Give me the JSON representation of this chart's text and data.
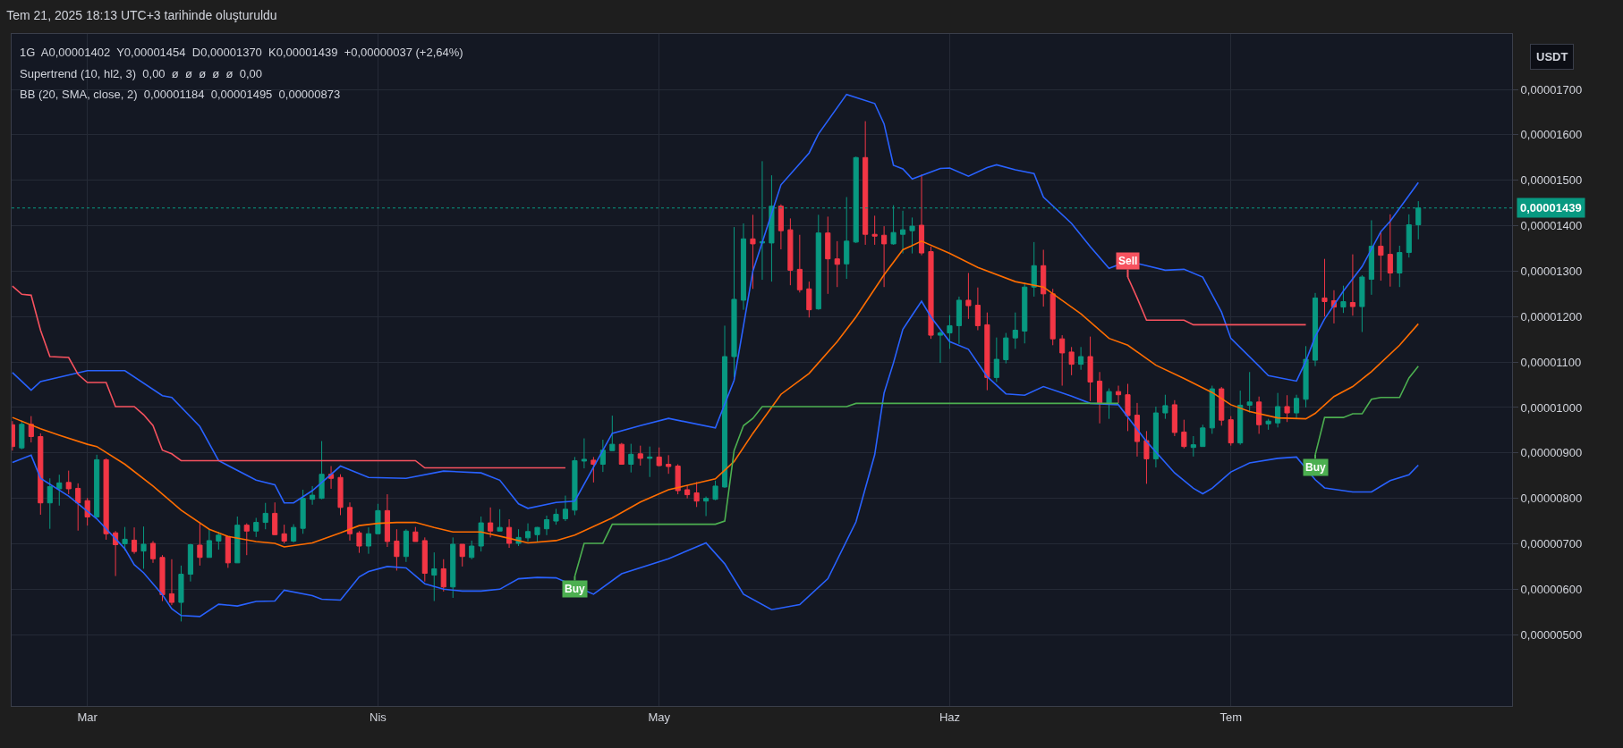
{
  "chart_data": {
    "type": "candlestick",
    "title": "Tem 21, 2025 18:13 UTC+3 tarihinde oluşturuldu",
    "x": [
      "2025-02-21",
      "2025-02-22",
      "2025-02-23",
      "2025-02-24",
      "2025-02-25",
      "2025-02-26",
      "2025-02-27",
      "2025-02-28",
      "2025-03-01",
      "2025-03-02",
      "2025-03-03",
      "2025-03-04",
      "2025-03-05",
      "2025-03-06",
      "2025-03-07",
      "2025-03-08",
      "2025-03-09",
      "2025-03-10",
      "2025-03-11",
      "2025-03-12",
      "2025-03-13",
      "2025-03-14",
      "2025-03-15",
      "2025-03-16",
      "2025-03-17",
      "2025-03-18",
      "2025-03-19",
      "2025-03-20",
      "2025-03-21",
      "2025-03-22",
      "2025-03-23",
      "2025-03-24",
      "2025-03-25",
      "2025-03-26",
      "2025-03-27",
      "2025-03-28",
      "2025-03-29",
      "2025-03-30",
      "2025-03-31",
      "2025-04-01",
      "2025-04-02",
      "2025-04-03",
      "2025-04-04",
      "2025-04-05",
      "2025-04-06",
      "2025-04-07",
      "2025-04-08",
      "2025-04-09",
      "2025-04-10",
      "2025-04-11",
      "2025-04-12",
      "2025-04-13",
      "2025-04-14",
      "2025-04-15",
      "2025-04-16",
      "2025-04-17",
      "2025-04-18",
      "2025-04-19",
      "2025-04-20",
      "2025-04-21",
      "2025-04-22",
      "2025-04-23",
      "2025-04-24",
      "2025-04-25",
      "2025-04-26",
      "2025-04-27",
      "2025-04-28",
      "2025-04-29",
      "2025-04-30",
      "2025-05-01",
      "2025-05-02",
      "2025-05-03",
      "2025-05-04",
      "2025-05-05",
      "2025-05-06",
      "2025-05-07",
      "2025-05-08",
      "2025-05-09",
      "2025-05-10",
      "2025-05-11",
      "2025-05-12",
      "2025-05-13",
      "2025-05-14",
      "2025-05-15",
      "2025-05-16",
      "2025-05-17",
      "2025-05-18",
      "2025-05-19",
      "2025-05-20",
      "2025-05-21",
      "2025-05-22",
      "2025-05-23",
      "2025-05-24",
      "2025-05-25",
      "2025-05-26",
      "2025-05-27",
      "2025-05-28",
      "2025-05-29",
      "2025-05-30",
      "2025-05-31",
      "2025-06-01",
      "2025-06-02",
      "2025-06-03",
      "2025-06-04",
      "2025-06-05",
      "2025-06-06",
      "2025-06-07",
      "2025-06-08",
      "2025-06-09",
      "2025-06-10",
      "2025-06-11",
      "2025-06-12",
      "2025-06-13",
      "2025-06-14",
      "2025-06-15",
      "2025-06-16",
      "2025-06-17",
      "2025-06-18",
      "2025-06-19",
      "2025-06-20",
      "2025-06-21",
      "2025-06-22",
      "2025-06-23",
      "2025-06-24",
      "2025-06-25",
      "2025-06-26",
      "2025-06-27",
      "2025-06-28",
      "2025-06-29",
      "2025-06-30",
      "2025-07-01",
      "2025-07-02",
      "2025-07-03",
      "2025-07-04",
      "2025-07-05",
      "2025-07-06",
      "2025-07-07",
      "2025-07-08",
      "2025-07-09",
      "2025-07-10",
      "2025-07-11",
      "2025-07-12",
      "2025-07-13",
      "2025-07-14",
      "2025-07-15",
      "2025-07-16",
      "2025-07-17",
      "2025-07-18",
      "2025-07-19",
      "2025-07-20",
      "2025-07-21"
    ],
    "ohlc": [
      [
        9.62e-06,
        9.7e-06,
        9.05e-06,
        9.14e-06
      ],
      [
        9.11e-06,
        9.71e-06,
        9.08e-06,
        9.63e-06
      ],
      [
        9.63e-06,
        9.81e-06,
        9.23e-06,
        9.36e-06
      ],
      [
        9.36e-06,
        9.43e-06,
        7.64e-06,
        7.9e-06
      ],
      [
        7.9e-06,
        8.44e-06,
        7.33e-06,
        8.26e-06
      ],
      [
        8.21e-06,
        8.52e-06,
        7.84e-06,
        8.34e-06
      ],
      [
        8.35e-06,
        8.61e-06,
        8.09e-06,
        8.21e-06
      ],
      [
        8.22e-06,
        8.33e-06,
        7.29e-06,
        7.9e-06
      ],
      [
        7.95e-06,
        8.01e-06,
        7.4e-06,
        7.59e-06
      ],
      [
        7.59e-06,
        8.96e-06,
        7.57e-06,
        8.85e-06
      ],
      [
        8.85e-06,
        8.88e-06,
        7.09e-06,
        7.22e-06
      ],
      [
        7.24e-06,
        7.28e-06,
        6.29e-06,
        6.98e-06
      ],
      [
        7e-06,
        7.37e-06,
        6.85e-06,
        7.1e-06
      ],
      [
        7.08e-06,
        7.36e-06,
        6.78e-06,
        6.83e-06
      ],
      [
        6.84e-06,
        7.38e-06,
        6.45e-06,
        6.99e-06
      ],
      [
        7.01e-06,
        7.06e-06,
        6.58e-06,
        6.67e-06
      ],
      [
        6.7e-06,
        6.75e-06,
        5.74e-06,
        5.88e-06
      ],
      [
        5.9e-06,
        6.66e-06,
        5.65e-06,
        5.71e-06
      ],
      [
        5.71e-06,
        6.52e-06,
        5.29e-06,
        6.33e-06
      ],
      [
        6.33e-06,
        7e-06,
        6.17e-06,
        6.98e-06
      ],
      [
        6.97e-06,
        7.47e-06,
        6.52e-06,
        6.7e-06
      ],
      [
        6.7e-06,
        7.33e-06,
        6.7e-06,
        7.07e-06
      ],
      [
        7.06e-06,
        7.26e-06,
        6.87e-06,
        7.19e-06
      ],
      [
        7.16e-06,
        7.16e-06,
        6.47e-06,
        6.58e-06
      ],
      [
        6.58e-06,
        7.6e-06,
        6.58e-06,
        7.41e-06
      ],
      [
        7.41e-06,
        7.45e-06,
        6.75e-06,
        7.28e-06
      ],
      [
        7.28e-06,
        7.57e-06,
        7.15e-06,
        7.47e-06
      ],
      [
        7.47e-06,
        7.9e-06,
        7.32e-06,
        7.67e-06
      ],
      [
        7.67e-06,
        7.91e-06,
        7.19e-06,
        7.2e-06
      ],
      [
        7.22e-06,
        7.42e-06,
        7.01e-06,
        7.06e-06
      ],
      [
        7.06e-06,
        7.43e-06,
        7.03e-06,
        7.36e-06
      ],
      [
        7.34e-06,
        8.19e-06,
        7.22e-06,
        8e-06
      ],
      [
        7.98e-06,
        8.27e-06,
        7.86e-06,
        8.07e-06
      ],
      [
        8e-06,
        9.26e-06,
        7.98e-06,
        8.53e-06
      ],
      [
        8.53e-06,
        8.71e-06,
        8.21e-06,
        8.44e-06
      ],
      [
        8.46e-06,
        8.53e-06,
        7.63e-06,
        7.8e-06
      ],
      [
        7.8e-06,
        7.91e-06,
        7.07e-06,
        7.22e-06
      ],
      [
        7.24e-06,
        7.28e-06,
        6.8e-06,
        6.95e-06
      ],
      [
        6.95e-06,
        7.36e-06,
        6.78e-06,
        7.22e-06
      ],
      [
        7.22e-06,
        7.88e-06,
        7.22e-06,
        7.73e-06
      ],
      [
        7.73e-06,
        8.09e-06,
        6.93e-06,
        7.05e-06
      ],
      [
        7.06e-06,
        7.32e-06,
        6.41e-06,
        6.72e-06
      ],
      [
        6.72e-06,
        7.32e-06,
        6.6e-06,
        7.28e-06
      ],
      [
        7.26e-06,
        7.37e-06,
        7.05e-06,
        7.05e-06
      ],
      [
        7.07e-06,
        7.14e-06,
        6.17e-06,
        6.35e-06
      ],
      [
        6.31e-06,
        6.81e-06,
        5.74e-06,
        6.45e-06
      ],
      [
        6.45e-06,
        6.66e-06,
        5.95e-06,
        6.05e-06
      ],
      [
        6.05e-06,
        7.14e-06,
        5.81e-06,
        6.99e-06
      ],
      [
        6.99e-06,
        6.99e-06,
        6.5e-06,
        6.72e-06
      ],
      [
        6.7e-06,
        7.07e-06,
        6.66e-06,
        6.95e-06
      ],
      [
        6.95e-06,
        7.6e-06,
        6.83e-06,
        7.46e-06
      ],
      [
        7.46e-06,
        7.8e-06,
        7.14e-06,
        7.28e-06
      ],
      [
        7.28e-06,
        7.76e-06,
        7.28e-06,
        7.36e-06
      ],
      [
        7.36e-06,
        7.54e-06,
        6.91e-06,
        7.01e-06
      ],
      [
        7.01e-06,
        7.32e-06,
        6.95e-06,
        7.14e-06
      ],
      [
        7.13e-06,
        7.45e-06,
        7.05e-06,
        7.27e-06
      ],
      [
        7.2e-06,
        7.37e-06,
        7.05e-06,
        7.36e-06
      ],
      [
        7.33e-06,
        7.62e-06,
        7.19e-06,
        7.53e-06
      ],
      [
        7.5e-06,
        7.77e-06,
        7.42e-06,
        7.65e-06
      ],
      [
        7.55e-06,
        8.06e-06,
        7.5e-06,
        7.76e-06
      ],
      [
        7.74e-06,
        8.91e-06,
        7.63e-06,
        8.83e-06
      ],
      [
        8.82e-06,
        9.32e-06,
        8.66e-06,
        8.86e-06
      ],
      [
        8.84e-06,
        8.91e-06,
        8.35e-06,
        8.75e-06
      ],
      [
        8.75e-06,
        9.29e-06,
        8.58e-06,
        9.06e-06
      ],
      [
        9.05e-06,
        9.82e-06,
        9.05e-06,
        9.19e-06
      ],
      [
        9.19e-06,
        9.22e-06,
        8.74e-06,
        8.75e-06
      ],
      [
        8.75e-06,
        9.2e-06,
        8.57e-06,
        8.97e-06
      ],
      [
        8.98e-06,
        9.16e-06,
        8.72e-06,
        8.88e-06
      ],
      [
        8.88e-06,
        9.14e-06,
        8.47e-06,
        8.91e-06
      ],
      [
        8.91e-06,
        9.12e-06,
        8.7e-06,
        8.72e-06
      ],
      [
        8.75e-06,
        8.95e-06,
        8.54e-06,
        8.7e-06
      ],
      [
        8.71e-06,
        8.75e-06,
        8.09e-06,
        8.17e-06
      ],
      [
        8.19e-06,
        8.29e-06,
        8e-06,
        8.08e-06
      ],
      [
        8.12e-06,
        8.36e-06,
        7.81e-06,
        7.94e-06
      ],
      [
        7.94e-06,
        8.04e-06,
        7.61e-06,
        8e-06
      ],
      [
        7.98e-06,
        8.39e-06,
        7.96e-06,
        8.27e-06
      ],
      [
        8.25e-06,
        1.18e-05,
        8.23e-06,
        1.112e-05
      ],
      [
        1.112e-05,
        1.397e-05,
        1.067e-05,
        1.238e-05
      ],
      [
        1.236e-05,
        1.405e-05,
        1.215e-05,
        1.371e-05
      ],
      [
        1.371e-05,
        1.424e-05,
        1.261e-05,
        1.36e-05
      ],
      [
        1.362e-05,
        1.542e-05,
        1.281e-05,
        1.365e-05
      ],
      [
        1.362e-05,
        1.511e-05,
        1.277e-05,
        1.443e-05
      ],
      [
        1.443e-05,
        1.447e-05,
        1.348e-05,
        1.389e-05
      ],
      [
        1.391e-05,
        1.416e-05,
        1.269e-05,
        1.302e-05
      ],
      [
        1.304e-05,
        1.38e-05,
        1.253e-05,
        1.259e-05
      ],
      [
        1.261e-05,
        1.277e-05,
        1.198e-05,
        1.215e-05
      ],
      [
        1.217e-05,
        1.424e-05,
        1.215e-05,
        1.384e-05
      ],
      [
        1.384e-05,
        1.42e-05,
        1.25e-05,
        1.327e-05
      ],
      [
        1.327e-05,
        1.366e-05,
        1.265e-05,
        1.315e-05
      ],
      [
        1.316e-05,
        1.463e-05,
        1.283e-05,
        1.366e-05
      ],
      [
        1.364e-05,
        1.552e-05,
        1.362e-05,
        1.55e-05
      ],
      [
        1.55e-05,
        1.63e-05,
        1.358e-05,
        1.381e-05
      ],
      [
        1.381e-05,
        1.422e-05,
        1.358e-05,
        1.377e-05
      ],
      [
        1.379e-05,
        1.399e-05,
        1.265e-05,
        1.36e-05
      ],
      [
        1.36e-05,
        1.445e-05,
        1.358e-05,
        1.385e-05
      ],
      [
        1.381e-05,
        1.433e-05,
        1.339e-05,
        1.391e-05
      ],
      [
        1.389e-05,
        1.418e-05,
        1.339e-05,
        1.399e-05
      ],
      [
        1.401e-05,
        1.513e-05,
        1.335e-05,
        1.34e-05
      ],
      [
        1.343e-05,
        1.354e-05,
        1.151e-05,
        1.159e-05
      ],
      [
        1.159e-05,
        1.168e-05,
        1.098e-05,
        1.164e-05
      ],
      [
        1.164e-05,
        1.203e-05,
        1.129e-05,
        1.18e-05
      ],
      [
        1.18e-05,
        1.244e-05,
        1.14e-05,
        1.236e-05
      ],
      [
        1.236e-05,
        1.296e-05,
        1.195e-05,
        1.224e-05
      ],
      [
        1.225e-05,
        1.264e-05,
        1.17e-05,
        1.18e-05
      ],
      [
        1.182e-05,
        1.209e-05,
        1.038e-05,
        1.066e-05
      ],
      [
        1.066e-05,
        1.154e-05,
        1.056e-05,
        1.106e-05
      ],
      [
        1.105e-05,
        1.164e-05,
        1.097e-05,
        1.153e-05
      ],
      [
        1.153e-05,
        1.209e-05,
        1.129e-05,
        1.17e-05
      ],
      [
        1.168e-05,
        1.275e-05,
        1.141e-05,
        1.265e-05
      ],
      [
        1.265e-05,
        1.364e-05,
        1.244e-05,
        1.312e-05
      ],
      [
        1.312e-05,
        1.347e-05,
        1.222e-05,
        1.25e-05
      ],
      [
        1.25e-05,
        1.261e-05,
        1.137e-05,
        1.151e-05
      ],
      [
        1.151e-05,
        1.159e-05,
        1.048e-05,
        1.12e-05
      ],
      [
        1.122e-05,
        1.133e-05,
        1.071e-05,
        1.095e-05
      ],
      [
        1.095e-05,
        1.133e-05,
        1.083e-05,
        1.112e-05
      ],
      [
        1.112e-05,
        1.156e-05,
        1.014e-05,
        1.056e-05
      ],
      [
        1.058e-05,
        1.078e-05,
        9.65e-06,
        1.01e-05
      ],
      [
        1.01e-05,
        1.042e-05,
        9.75e-06,
        1.035e-05
      ],
      [
        1.035e-05,
        1.048e-05,
        1.01e-05,
        1.028e-05
      ],
      [
        1.028e-05,
        1.052e-05,
        9.48e-06,
        9.82e-06
      ],
      [
        9.83e-06,
        1.01e-05,
        8.92e-06,
        9.25e-06
      ],
      [
        9.27e-06,
        9.48e-06,
        8.32e-06,
        8.87e-06
      ],
      [
        8.87e-06,
        1.002e-05,
        8.68e-06,
        9.88e-06
      ],
      [
        9.88e-06,
        1.028e-05,
        9.75e-06,
        1.004e-05
      ],
      [
        1.006e-05,
        1.016e-05,
        9.37e-06,
        9.45e-06
      ],
      [
        9.46e-06,
        9.73e-06,
        9.1e-06,
        9.14e-06
      ],
      [
        9.12e-06,
        9.37e-06,
        8.92e-06,
        9.18e-06
      ],
      [
        9.14e-06,
        9.62e-06,
        9.14e-06,
        9.55e-06
      ],
      [
        9.55e-06,
        1.048e-05,
        9.42e-06,
        1.041e-05
      ],
      [
        1.041e-05,
        1.045e-05,
        9.6e-06,
        9.72e-06
      ],
      [
        9.73e-06,
        9.81e-06,
        9.16e-06,
        9.22e-06
      ],
      [
        9.22e-06,
        1.037e-05,
        9.18e-06,
        1.005e-05
      ],
      [
        1.005e-05,
        1.078e-05,
        9.89e-06,
        1.012e-05
      ],
      [
        1.012e-05,
        1.024e-05,
        9.42e-06,
        9.62e-06
      ],
      [
        9.64e-06,
        9.75e-06,
        9.51e-06,
        9.7e-06
      ],
      [
        9.66e-06,
        1.032e-05,
        9.56e-06,
        1.002e-05
      ],
      [
        1.002e-05,
        1.027e-05,
        9.68e-06,
        9.88e-06
      ],
      [
        9.88e-06,
        1.028e-05,
        9.75e-06,
        1.02e-05
      ],
      [
        1.018e-05,
        1.135e-05,
        1e-05,
        1.106e-05
      ],
      [
        1.104e-05,
        1.252e-05,
        1.091e-05,
        1.241e-05
      ],
      [
        1.241e-05,
        1.327e-05,
        1.2e-05,
        1.233e-05
      ],
      [
        1.235e-05,
        1.258e-05,
        1.185e-05,
        1.221e-05
      ],
      [
        1.221e-05,
        1.268e-05,
        1.208e-05,
        1.233e-05
      ],
      [
        1.231e-05,
        1.337e-05,
        1.202e-05,
        1.222e-05
      ],
      [
        1.222e-05,
        1.291e-05,
        1.166e-05,
        1.287e-05
      ],
      [
        1.282e-05,
        1.412e-05,
        1.248e-05,
        1.355e-05
      ],
      [
        1.355e-05,
        1.385e-05,
        1.279e-05,
        1.335e-05
      ],
      [
        1.337e-05,
        1.425e-05,
        1.266e-05,
        1.296e-05
      ],
      [
        1.296e-05,
        1.356e-05,
        1.265e-05,
        1.341e-05
      ],
      [
        1.341e-05,
        1.425e-05,
        1.33e-05,
        1.402e-05
      ],
      [
        1.402e-05,
        1.454e-05,
        1.37e-05,
        1.439e-05
      ]
    ],
    "series": [
      {
        "type": "line",
        "color": "#2962ff",
        "x": [
          "2025-02-21",
          "2025-02-23",
          "2025-02-24",
          "2025-03-01",
          "2025-03-05",
          "2025-03-09",
          "2025-03-10",
          "2025-03-13",
          "2025-03-15",
          "2025-03-19",
          "2025-03-21",
          "2025-03-22",
          "2025-03-23",
          "2025-03-25",
          "2025-03-28",
          "2025-03-31",
          "2025-04-04",
          "2025-04-08",
          "2025-04-12",
          "2025-04-14",
          "2025-04-16",
          "2025-04-17",
          "2025-04-20",
          "2025-04-22",
          "2025-04-26",
          "2025-04-29",
          "2025-05-02",
          "2025-05-07",
          "2025-05-09",
          "2025-05-11",
          "2025-05-14",
          "2025-05-17",
          "2025-05-18",
          "2025-05-21",
          "2025-05-24",
          "2025-05-25",
          "2025-05-26",
          "2025-05-27",
          "2025-05-28",
          "2025-05-31",
          "2025-06-01",
          "2025-06-03",
          "2025-06-05",
          "2025-06-06",
          "2025-06-08",
          "2025-06-10",
          "2025-06-11",
          "2025-06-14",
          "2025-06-16",
          "2025-06-18",
          "2025-06-20",
          "2025-06-24",
          "2025-06-26",
          "2025-06-28",
          "2025-06-30",
          "2025-07-01",
          "2025-07-04",
          "2025-07-05",
          "2025-07-08",
          "2025-07-09",
          "2025-07-10",
          "2025-07-11",
          "2025-07-13",
          "2025-07-15",
          "2025-07-17",
          "2025-07-18",
          "2025-07-21"
        ],
        "values": [
          1.077e-05,
          1.038e-05,
          1.057e-05,
          1.081e-05,
          1.081e-05,
          1.026e-05,
          1.022e-05,
          9.58e-06,
          8.83e-06,
          8.4e-06,
          8.3e-06,
          7.9e-06,
          7.9e-06,
          8.17e-06,
          8.71e-06,
          8.46e-06,
          8.44e-06,
          8.6e-06,
          8.56e-06,
          8.4e-06,
          7.88e-06,
          7.78e-06,
          7.91e-06,
          7.94e-06,
          9.43e-06,
          9.6e-06,
          9.76e-06,
          9.55e-06,
          1.06e-05,
          1.3e-05,
          1.49e-05,
          1.56e-05,
          1.602e-05,
          1.689e-05,
          1.669e-05,
          1.624e-05,
          1.533e-05,
          1.525e-05,
          1.503e-05,
          1.526e-05,
          1.527e-05,
          1.509e-05,
          1.528e-05,
          1.534e-05,
          1.523e-05,
          1.515e-05,
          1.463e-05,
          1.405e-05,
          1.354e-05,
          1.306e-05,
          1.322e-05,
          1.302e-05,
          1.304e-05,
          1.287e-05,
          1.21e-05,
          1.152e-05,
          1.091e-05,
          1.07e-05,
          1.058e-05,
          1.102e-05,
          1.156e-05,
          1.195e-05,
          1.256e-05,
          1.31e-05,
          1.387e-05,
          1.41e-05,
          1.495e-05
        ]
      },
      {
        "type": "line",
        "color": "#ff6d00",
        "x": [
          "2025-02-21",
          "2025-02-24",
          "2025-02-26",
          "2025-03-01",
          "2025-03-02",
          "2025-03-05",
          "2025-03-08",
          "2025-03-11",
          "2025-03-14",
          "2025-03-16",
          "2025-03-19",
          "2025-03-21",
          "2025-03-22",
          "2025-03-25",
          "2025-03-28",
          "2025-03-30",
          "2025-04-01",
          "2025-04-03",
          "2025-04-05",
          "2025-04-07",
          "2025-04-09",
          "2025-04-12",
          "2025-04-15",
          "2025-04-17",
          "2025-04-20",
          "2025-04-22",
          "2025-04-26",
          "2025-04-29",
          "2025-05-02",
          "2025-05-07",
          "2025-05-09",
          "2025-05-11",
          "2025-05-14",
          "2025-05-17",
          "2025-05-20",
          "2025-05-22",
          "2025-05-25",
          "2025-05-27",
          "2025-05-29",
          "2025-06-01",
          "2025-06-04",
          "2025-06-08",
          "2025-06-11",
          "2025-06-15",
          "2025-06-18",
          "2025-06-20",
          "2025-06-23",
          "2025-06-26",
          "2025-06-29",
          "2025-07-01",
          "2025-07-03",
          "2025-07-06",
          "2025-07-09",
          "2025-07-10",
          "2025-07-12",
          "2025-07-14",
          "2025-07-16",
          "2025-07-19",
          "2025-07-21"
        ],
        "values": [
          9.78e-06,
          9.53e-06,
          9.39e-06,
          9.19e-06,
          9.14e-06,
          8.75e-06,
          8.27e-06,
          7.74e-06,
          7.32e-06,
          7.16e-06,
          7.05e-06,
          7.01e-06,
          6.93e-06,
          7.02e-06,
          7.24e-06,
          7.4e-06,
          7.45e-06,
          7.47e-06,
          7.47e-06,
          7.36e-06,
          7.26e-06,
          7.26e-06,
          7.12e-06,
          7.02e-06,
          7.07e-06,
          7.19e-06,
          7.57e-06,
          7.92e-06,
          8.19e-06,
          8.43e-06,
          8.81e-06,
          9.43e-06,
          1.029e-05,
          1.075e-05,
          1.145e-05,
          1.199e-05,
          1.292e-05,
          1.347e-05,
          1.366e-05,
          1.339e-05,
          1.308e-05,
          1.277e-05,
          1.265e-05,
          1.206e-05,
          1.152e-05,
          1.137e-05,
          1.093e-05,
          1.064e-05,
          1.033e-05,
          1.006e-05,
          9.91e-06,
          9.77e-06,
          9.75e-06,
          9.87e-06,
          1.024e-05,
          1.046e-05,
          1.079e-05,
          1.137e-05,
          1.184e-05
        ]
      },
      {
        "type": "line",
        "color": "#2962ff",
        "x": [
          "2025-02-21",
          "2025-02-23",
          "2025-02-24",
          "2025-02-27",
          "2025-03-02",
          "2025-03-05",
          "2025-03-06",
          "2025-03-07",
          "2025-03-09",
          "2025-03-10",
          "2025-03-11",
          "2025-03-13",
          "2025-03-15",
          "2025-03-17",
          "2025-03-19",
          "2025-03-21",
          "2025-03-22",
          "2025-03-25",
          "2025-03-26",
          "2025-03-28",
          "2025-03-30",
          "2025-03-31",
          "2025-04-02",
          "2025-04-04",
          "2025-04-06",
          "2025-04-08",
          "2025-04-10",
          "2025-04-12",
          "2025-04-14",
          "2025-04-16",
          "2025-04-18",
          "2025-04-20",
          "2025-04-24",
          "2025-04-27",
          "2025-05-02",
          "2025-05-06",
          "2025-05-08",
          "2025-05-10",
          "2025-05-13",
          "2025-05-16",
          "2025-05-19",
          "2025-05-22",
          "2025-05-24",
          "2025-05-25",
          "2025-05-26",
          "2025-05-27",
          "2025-05-29",
          "2025-05-30",
          "2025-06-01",
          "2025-06-03",
          "2025-06-05",
          "2025-06-07",
          "2025-06-09",
          "2025-06-11",
          "2025-06-14",
          "2025-06-16",
          "2025-06-19",
          "2025-06-22",
          "2025-06-25",
          "2025-06-27",
          "2025-06-28",
          "2025-06-29",
          "2025-07-01",
          "2025-07-03",
          "2025-07-06",
          "2025-07-08",
          "2025-07-10",
          "2025-07-11",
          "2025-07-14",
          "2025-07-16",
          "2025-07-18",
          "2025-07-20",
          "2025-07-21"
        ],
        "values": [
          8.79e-06,
          8.95e-06,
          8.44e-06,
          8.05e-06,
          7.55e-06,
          6.89e-06,
          6.54e-06,
          6.36e-06,
          5.88e-06,
          5.57e-06,
          5.42e-06,
          5.4e-06,
          5.67e-06,
          5.63e-06,
          5.73e-06,
          5.74e-06,
          5.98e-06,
          5.86e-06,
          5.78e-06,
          5.76e-06,
          6.27e-06,
          6.39e-06,
          6.5e-06,
          6.47e-06,
          6.12e-06,
          6e-06,
          5.96e-06,
          5.96e-06,
          6e-06,
          6.23e-06,
          6.26e-06,
          6.25e-06,
          5.89e-06,
          6.34e-06,
          6.67e-06,
          7.02e-06,
          6.56e-06,
          5.89e-06,
          5.55e-06,
          5.66e-06,
          6.23e-06,
          7.48e-06,
          8.96e-06,
          1.032e-05,
          1.098e-05,
          1.172e-05,
          1.234e-05,
          1.199e-05,
          1.145e-05,
          1.128e-05,
          1.068e-05,
          1.03e-05,
          1.027e-05,
          1.046e-05,
          1.025e-05,
          1.009e-05,
          1.006e-05,
          9.25e-06,
          8.56e-06,
          8.22e-06,
          8.1e-06,
          8.22e-06,
          8.58e-06,
          8.78e-06,
          8.88e-06,
          8.91e-06,
          8.41e-06,
          8.23e-06,
          8.14e-06,
          8.14e-06,
          8.39e-06,
          8.52e-06,
          8.73e-06
        ]
      },
      {
        "type": "line",
        "color": "#f7525f",
        "x": [
          "2025-02-21",
          "2025-02-22",
          "2025-02-23",
          "2025-02-24",
          "2025-02-25",
          "2025-02-27",
          "2025-02-28",
          "2025-03-01",
          "2025-03-03",
          "2025-03-04",
          "2025-03-06",
          "2025-03-07",
          "2025-03-08",
          "2025-03-09",
          "2025-03-10",
          "2025-03-11",
          "2025-04-05",
          "2025-04-06",
          "2025-04-21"
        ],
        "values": [
          1.267e-05,
          1.249e-05,
          1.247e-05,
          1.17e-05,
          1.112e-05,
          1.11e-05,
          1.073e-05,
          1.055e-05,
          1.055e-05,
          1.002e-05,
          1.002e-05,
          9.84e-06,
          9.6e-06,
          9.06e-06,
          8.98e-06,
          8.83e-06,
          8.83e-06,
          8.67e-06,
          8.67e-06
        ]
      },
      {
        "type": "line",
        "color": "#4caf50",
        "x": [
          "2025-04-22",
          "2025-04-23",
          "2025-04-25",
          "2025-04-26",
          "2025-05-07",
          "2025-05-08",
          "2025-05-09",
          "2025-05-10",
          "2025-05-11",
          "2025-05-12",
          "2025-05-21",
          "2025-05-22",
          "2025-06-19"
        ],
        "values": [
          6.28e-06,
          7.01e-06,
          7.01e-06,
          7.43e-06,
          7.43e-06,
          7.5e-06,
          9.05e-06,
          9.6e-06,
          9.76e-06,
          1.002e-05,
          1.002e-05,
          1.009e-05,
          1.009e-05
        ]
      },
      {
        "type": "line",
        "color": "#f7525f",
        "x": [
          "2025-06-20",
          "2025-06-21",
          "2025-06-22",
          "2025-06-26",
          "2025-06-27",
          "2025-07-09"
        ],
        "values": [
          1.287e-05,
          1.241e-05,
          1.192e-05,
          1.192e-05,
          1.182e-05,
          1.182e-05
        ]
      },
      {
        "type": "line",
        "color": "#4caf50",
        "x": [
          "2025-07-10",
          "2025-07-11",
          "2025-07-13",
          "2025-07-14",
          "2025-07-15",
          "2025-07-16",
          "2025-07-17",
          "2025-07-19",
          "2025-07-20",
          "2025-07-21"
        ],
        "values": [
          8.96e-06,
          9.78e-06,
          9.78e-06,
          9.86e-06,
          9.86e-06,
          1.018e-05,
          1.022e-05,
          1.022e-05,
          1.065e-05,
          1.091e-05
        ]
      }
    ],
    "xlim": [
      "2025-02-20T22:00",
      "2025-07-31"
    ],
    "xticks": [
      {
        "value": "2025-03-01",
        "label": "Mar"
      },
      {
        "value": "2025-04-01",
        "label": "Nis"
      },
      {
        "value": "2025-05-01",
        "label": "May"
      },
      {
        "value": "2025-06-01",
        "label": "Haz"
      },
      {
        "value": "2025-07-01",
        "label": "Tem"
      }
    ],
    "ylim": [
      3.43e-06,
      1.822e-05
    ],
    "yticks": [
      {
        "value": 5e-06,
        "label": "0,00000500"
      },
      {
        "value": 6e-06,
        "label": "0,00000600"
      },
      {
        "value": 7e-06,
        "label": "0,00000700"
      },
      {
        "value": 8e-06,
        "label": "0,00000800"
      },
      {
        "value": 9e-06,
        "label": "0,00000900"
      },
      {
        "value": 1e-05,
        "label": "0,00001000"
      },
      {
        "value": 1.1e-05,
        "label": "0,00001100"
      },
      {
        "value": 1.2e-05,
        "label": "0,00001200"
      },
      {
        "value": 1.3e-05,
        "label": "0,00001300"
      },
      {
        "value": 1.4e-05,
        "label": "0,00001400"
      },
      {
        "value": 1.5e-05,
        "label": "0,00001500"
      },
      {
        "value": 1.6e-05,
        "label": "0,00001600"
      },
      {
        "value": 1.7e-05,
        "label": "0,00001700"
      }
    ],
    "grid": true,
    "ref_lines": [
      {
        "axis": "y",
        "value": 1.439e-05,
        "label": "0,00001439",
        "color": "#089981",
        "line_style": "dotted"
      }
    ],
    "annotations": [
      "1G  A0,00001402  Y0,00001454  D0,00001370  K0,00001439  +0,00000037 (+2,64%)",
      "Supertrend (10, hl2, 3)  0,00  ø  ø  ø  ø  ø  0,00",
      "BB (20, SMA, close, 2)  0,00001184  0,00001495  0,00000873",
      "USDT",
      {
        "text": "Buy",
        "x": "2025-04-22",
        "y": 6.28e-06
      },
      {
        "text": "Sell",
        "x": "2025-06-20",
        "y": 1.287e-05
      },
      {
        "text": "Buy",
        "x": "2025-07-10",
        "y": 8.96e-06
      }
    ]
  }
}
